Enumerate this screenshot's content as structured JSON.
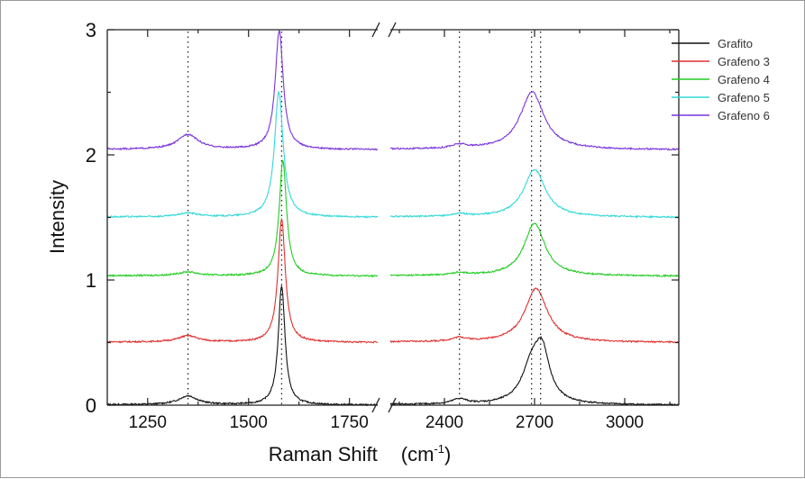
{
  "chart_data": {
    "type": "line",
    "title": "",
    "xlabel": "Raman Shift",
    "xlabel_unit_base": "(cm",
    "xlabel_unit_sup": "-1",
    "xlabel_unit_close": ")",
    "ylabel": "Intensity",
    "ylim": [
      0,
      3
    ],
    "yticks": [
      0,
      1,
      2,
      3
    ],
    "x_axis_broken": true,
    "x_segments": [
      {
        "range": [
          1150,
          1820
        ],
        "ticks": [
          1250,
          1500,
          1750
        ]
      },
      {
        "range": [
          2220,
          3180
        ],
        "ticks": [
          2400,
          2700,
          3000
        ]
      }
    ],
    "reference_lines_x": [
      1350,
      1582,
      2450,
      2690,
      2720
    ],
    "legend_position": "top-right",
    "grid": false,
    "series": [
      {
        "name": "Grafito",
        "color": "#111111",
        "offset": 0.0,
        "peaks": [
          {
            "x": 1350,
            "height": 0.07,
            "width": 28
          },
          {
            "x": 1582,
            "height": 0.95,
            "width": 10
          },
          {
            "x": 2450,
            "height": 0.04,
            "width": 30
          },
          {
            "x": 2690,
            "height": 0.28,
            "width": 40
          },
          {
            "x": 2725,
            "height": 0.37,
            "width": 30
          }
        ]
      },
      {
        "name": "Grafeno 3",
        "color": "#e03030",
        "offset": 0.5,
        "peaks": [
          {
            "x": 1350,
            "height": 0.05,
            "width": 30
          },
          {
            "x": 1582,
            "height": 0.98,
            "width": 11
          },
          {
            "x": 2450,
            "height": 0.03,
            "width": 30
          },
          {
            "x": 2705,
            "height": 0.43,
            "width": 45
          }
        ]
      },
      {
        "name": "Grafeno 4",
        "color": "#22cc22",
        "offset": 1.03,
        "peaks": [
          {
            "x": 1350,
            "height": 0.03,
            "width": 30
          },
          {
            "x": 1585,
            "height": 0.92,
            "width": 11
          },
          {
            "x": 2450,
            "height": 0.02,
            "width": 30
          },
          {
            "x": 2700,
            "height": 0.42,
            "width": 42
          }
        ]
      },
      {
        "name": "Grafeno 5",
        "color": "#33d8d8",
        "offset": 1.5,
        "peaks": [
          {
            "x": 1350,
            "height": 0.03,
            "width": 30
          },
          {
            "x": 1575,
            "height": 1.0,
            "width": 13
          },
          {
            "x": 2450,
            "height": 0.02,
            "width": 30
          },
          {
            "x": 2700,
            "height": 0.38,
            "width": 44
          }
        ]
      },
      {
        "name": "Grafeno 6",
        "color": "#7a33dd",
        "offset": 2.04,
        "peaks": [
          {
            "x": 1350,
            "height": 0.12,
            "width": 30
          },
          {
            "x": 1576,
            "height": 0.95,
            "width": 12
          },
          {
            "x": 2450,
            "height": 0.03,
            "width": 30
          },
          {
            "x": 2692,
            "height": 0.46,
            "width": 48
          }
        ]
      }
    ]
  }
}
